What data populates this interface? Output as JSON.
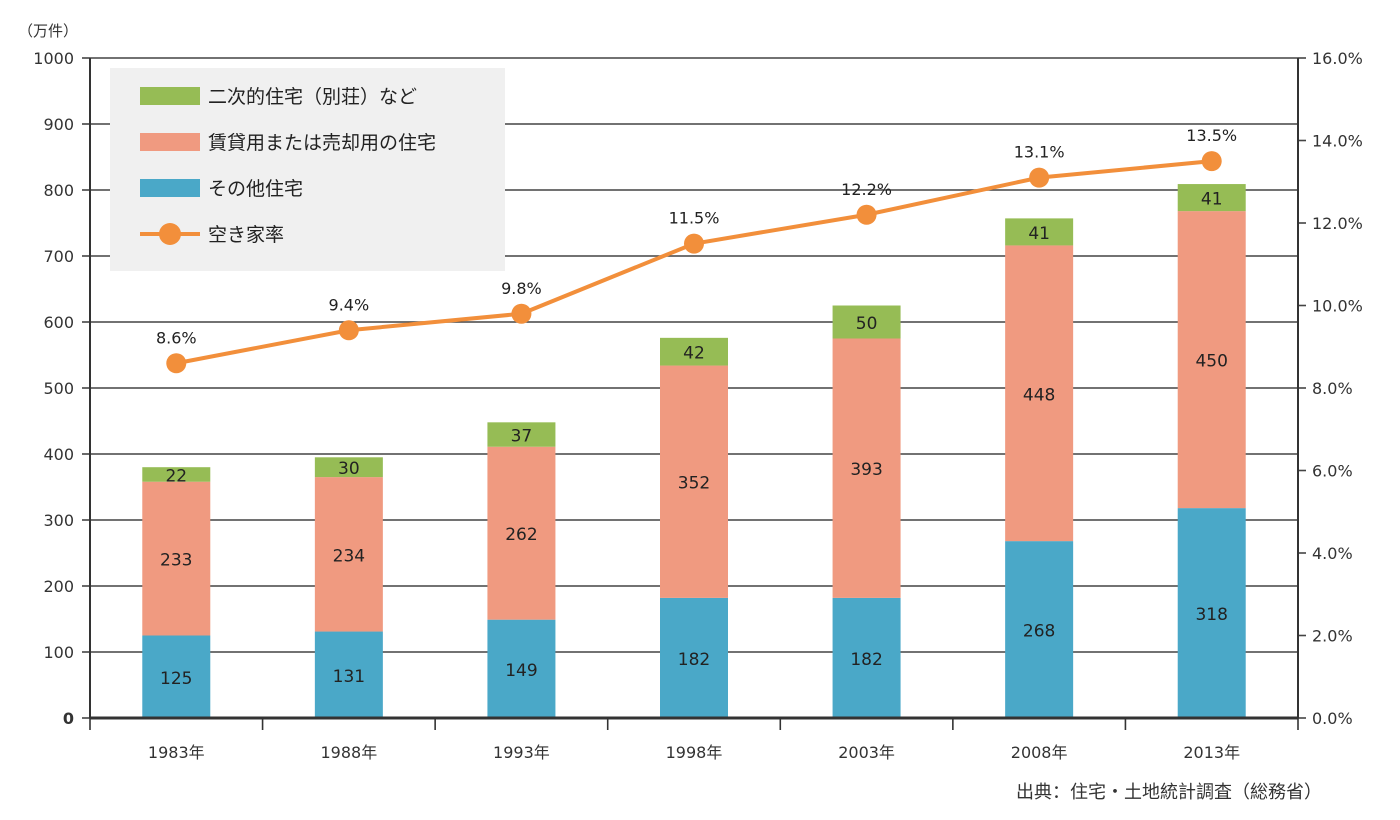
{
  "chart_data": {
    "type": "bar",
    "stacked": true,
    "categories": [
      "1983年",
      "1988年",
      "1993年",
      "1998年",
      "2003年",
      "2008年",
      "2013年"
    ],
    "series": [
      {
        "name": "その他住宅",
        "values": [
          125,
          131,
          149,
          182,
          182,
          268,
          318
        ],
        "color": "#4aa8c8"
      },
      {
        "name": "賃貸用または売却用の住宅",
        "values": [
          233,
          234,
          262,
          352,
          393,
          448,
          450
        ],
        "color": "#f09a80"
      },
      {
        "name": "二次的住宅（別荘）など",
        "values": [
          22,
          30,
          37,
          42,
          50,
          41,
          41
        ],
        "color": "#96bc55"
      }
    ],
    "line_series": {
      "name": "空き家率",
      "values": [
        8.6,
        9.4,
        9.8,
        11.5,
        12.2,
        13.1,
        13.5
      ],
      "labels": [
        "8.6%",
        "9.4%",
        "9.8%",
        "11.5%",
        "12.2%",
        "13.1%",
        "13.5%"
      ],
      "color": "#f28f3b",
      "axis": "right"
    },
    "y_left": {
      "unit": "（万件）",
      "ylim": [
        0,
        1000
      ],
      "ticks": [
        "0",
        "100",
        "200",
        "300",
        "400",
        "500",
        "600",
        "700",
        "800",
        "900",
        "1000"
      ]
    },
    "y_right": {
      "ylim": [
        0,
        16
      ],
      "ticks": [
        "0.0%",
        "2.0%",
        "4.0%",
        "6.0%",
        "8.0%",
        "10.0%",
        "12.0%",
        "14.0%",
        "16.0%"
      ]
    },
    "grid": true,
    "legend_position": "top-left",
    "legend_order": [
      "二次的住宅（別荘）など",
      "賃貸用または売却用の住宅",
      "その他住宅",
      "空き家率"
    ],
    "legend_background": "#f0f0f0",
    "source": "出典：住宅・土地統計調査（総務省）"
  }
}
